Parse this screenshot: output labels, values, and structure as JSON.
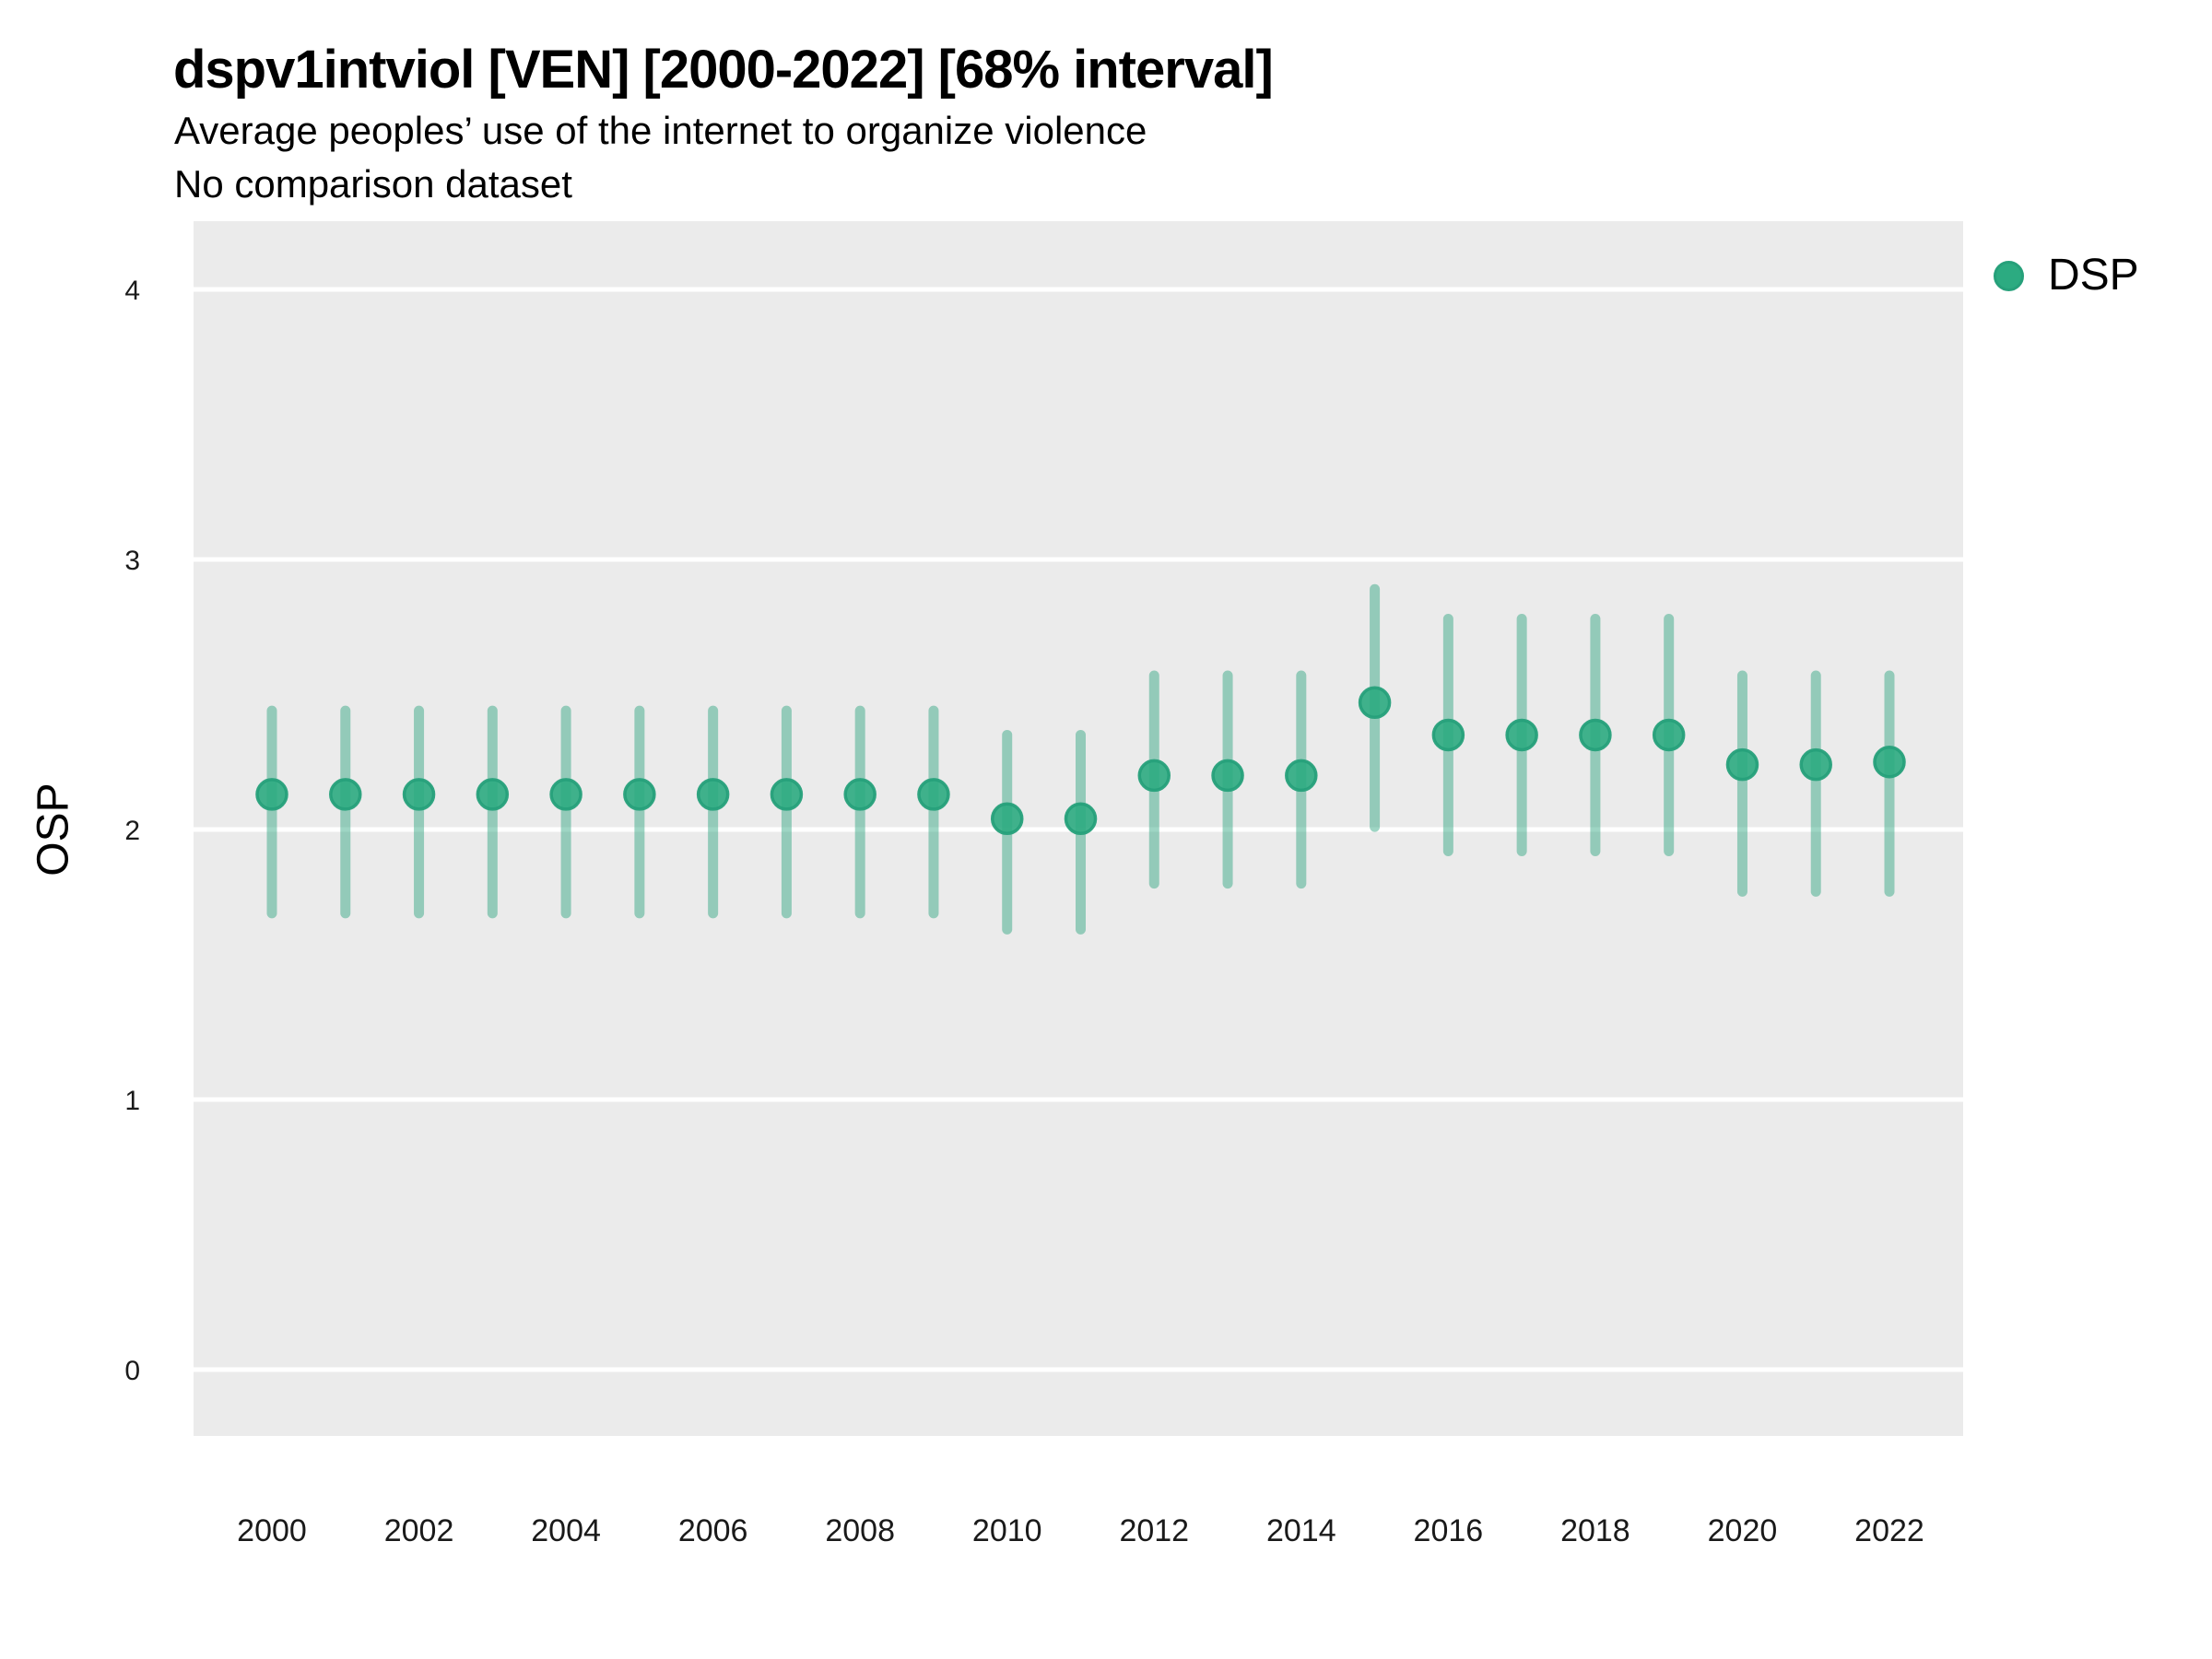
{
  "title": "dspv1intviol [VEN] [2000-2022] [68% interval]",
  "subtitle": "Average peoples’ use of the internet to organize violence",
  "note": "No comparison dataset",
  "legend": {
    "label": "DSP",
    "marker": "circle-icon"
  },
  "axes": {
    "y_label": "OSP",
    "y_ticks": [
      "0",
      "1",
      "2",
      "3",
      "4"
    ],
    "x_ticks": [
      "2000",
      "2002",
      "2004",
      "2006",
      "2008",
      "2010",
      "2012",
      "2014",
      "2016",
      "2018",
      "2020",
      "2022"
    ]
  },
  "colors": {
    "point_fill": "#2CAB81",
    "point_stroke": "#26A07A",
    "interval_bar": "rgba(39,161,124,0.45)",
    "panel_background": "#EBEBEB",
    "gridline": "#FFFFFF",
    "tick_text": "#1a1a1a"
  },
  "chart_data": {
    "type": "pointrange",
    "title": "dspv1intviol [VEN] [2000-2022] [68% interval]",
    "subtitle": "Average peoples’ use of the internet to organize violence",
    "note": "No comparison dataset",
    "interval": "68%",
    "xlabel": "",
    "ylabel": "OSP",
    "x_range": [
      2000,
      2022
    ],
    "ylim_displayed": [
      -0.25,
      4.27
    ],
    "y_ticks": [
      0,
      1,
      2,
      3,
      4
    ],
    "x_ticks": [
      2000,
      2002,
      2004,
      2006,
      2008,
      2010,
      2012,
      2014,
      2016,
      2018,
      2020,
      2022
    ],
    "grid": "major-horizontal-white-on-gray",
    "legend_position": "right-top",
    "series": [
      {
        "name": "DSP",
        "points": [
          {
            "year": 2000,
            "mean": 2.13,
            "lo": 1.69,
            "hi": 2.44
          },
          {
            "year": 2001,
            "mean": 2.13,
            "lo": 1.69,
            "hi": 2.44
          },
          {
            "year": 2002,
            "mean": 2.13,
            "lo": 1.69,
            "hi": 2.44
          },
          {
            "year": 2003,
            "mean": 2.13,
            "lo": 1.69,
            "hi": 2.44
          },
          {
            "year": 2004,
            "mean": 2.13,
            "lo": 1.69,
            "hi": 2.44
          },
          {
            "year": 2005,
            "mean": 2.13,
            "lo": 1.69,
            "hi": 2.44
          },
          {
            "year": 2006,
            "mean": 2.13,
            "lo": 1.69,
            "hi": 2.44
          },
          {
            "year": 2007,
            "mean": 2.13,
            "lo": 1.69,
            "hi": 2.44
          },
          {
            "year": 2008,
            "mean": 2.13,
            "lo": 1.69,
            "hi": 2.44
          },
          {
            "year": 2009,
            "mean": 2.13,
            "lo": 1.69,
            "hi": 2.44
          },
          {
            "year": 2010,
            "mean": 2.04,
            "lo": 1.63,
            "hi": 2.35
          },
          {
            "year": 2011,
            "mean": 2.04,
            "lo": 1.63,
            "hi": 2.35
          },
          {
            "year": 2012,
            "mean": 2.2,
            "lo": 1.8,
            "hi": 2.57
          },
          {
            "year": 2013,
            "mean": 2.2,
            "lo": 1.8,
            "hi": 2.57
          },
          {
            "year": 2014,
            "mean": 2.2,
            "lo": 1.8,
            "hi": 2.57
          },
          {
            "year": 2015,
            "mean": 2.47,
            "lo": 2.01,
            "hi": 2.89
          },
          {
            "year": 2016,
            "mean": 2.35,
            "lo": 1.92,
            "hi": 2.78
          },
          {
            "year": 2017,
            "mean": 2.35,
            "lo": 1.92,
            "hi": 2.78
          },
          {
            "year": 2018,
            "mean": 2.35,
            "lo": 1.92,
            "hi": 2.78
          },
          {
            "year": 2019,
            "mean": 2.35,
            "lo": 1.92,
            "hi": 2.78
          },
          {
            "year": 2020,
            "mean": 2.24,
            "lo": 1.77,
            "hi": 2.57
          },
          {
            "year": 2021,
            "mean": 2.24,
            "lo": 1.77,
            "hi": 2.57
          },
          {
            "year": 2022,
            "mean": 2.25,
            "lo": 1.77,
            "hi": 2.57
          }
        ]
      }
    ]
  }
}
